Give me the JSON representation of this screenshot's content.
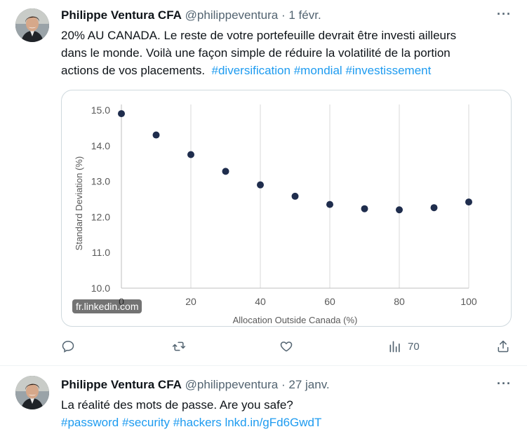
{
  "tweets": [
    {
      "author": "Philippe Ventura CFA",
      "handle": "@philippeventura",
      "separator": "·",
      "date": "1 févr.",
      "text_lines": [
        "20% AU CANADA. Le reste de votre portefeuille devrait être investi ailleurs",
        "dans le monde. Voilà une façon simple de réduire la volatilité de la portion",
        "actions de vos placements."
      ],
      "hashtags": [
        "#diversification",
        "#mondial",
        "#investissement"
      ],
      "link_domain": "fr.linkedin.com",
      "views": "70",
      "icons": [
        "reply-icon",
        "retweet-icon",
        "like-icon",
        "views-icon",
        "share-icon"
      ]
    },
    {
      "author": "Philippe Ventura CFA",
      "handle": "@philippeventura",
      "separator": "·",
      "date": "27 janv.",
      "text_line": "La réalité des mots de passe. Are you safe?",
      "tags": [
        "#password",
        "#security",
        "#hackers"
      ],
      "link": "lnkd.in/gFd6GwdT"
    }
  ],
  "more_label": "···",
  "chart_data": {
    "type": "scatter",
    "xlabel": "Allocation Outside Canada (%)",
    "ylabel": "Standard Deviation (%)",
    "xlim": [
      0,
      100
    ],
    "ylim": [
      10.0,
      15.0
    ],
    "x_ticks": [
      "0",
      "20",
      "40",
      "60",
      "80",
      "100"
    ],
    "y_ticks": [
      "10.0",
      "11.0",
      "12.0",
      "13.0",
      "14.0",
      "15.0"
    ],
    "grid": "vertical",
    "point_color": "#1f2d4d",
    "points": [
      {
        "x": 0,
        "y": 14.9
      },
      {
        "x": 10,
        "y": 14.3
      },
      {
        "x": 20,
        "y": 13.75
      },
      {
        "x": 30,
        "y": 13.28
      },
      {
        "x": 40,
        "y": 12.9
      },
      {
        "x": 50,
        "y": 12.58
      },
      {
        "x": 60,
        "y": 12.35
      },
      {
        "x": 70,
        "y": 12.23
      },
      {
        "x": 80,
        "y": 12.2
      },
      {
        "x": 90,
        "y": 12.26
      },
      {
        "x": 100,
        "y": 12.42
      }
    ]
  }
}
